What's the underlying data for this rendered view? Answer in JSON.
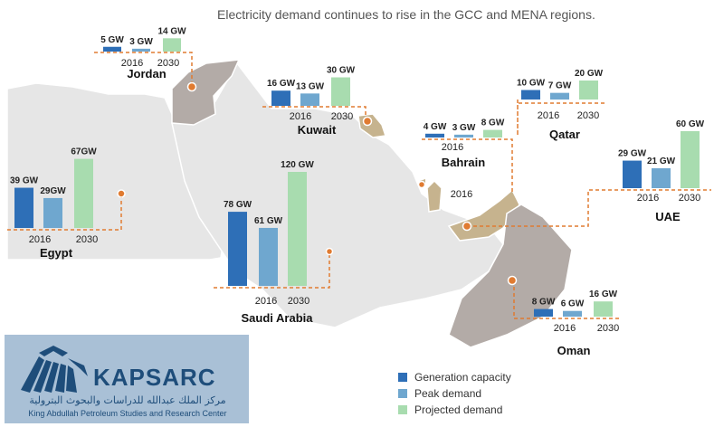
{
  "title": "Electricity demand continues to rise in the GCC and MENA regions.",
  "colors": {
    "generation": "#2e6fb7",
    "peak": "#6fa7cf",
    "projected": "#a8dcaf",
    "connector": "#e07b31",
    "land_light": "#e6e6e6",
    "land_dark": "#b3aba7",
    "land_gold": "#c6b38e"
  },
  "legend": [
    {
      "label": "Generation capacity",
      "color": "#2e6fb7"
    },
    {
      "label": "Peak demand",
      "color": "#6fa7cf"
    },
    {
      "label": "Projected demand",
      "color": "#a8dcaf"
    }
  ],
  "logo": {
    "icon": "kapsarc-logo-icon",
    "brand": "KAPSARC",
    "arabic": "مركز الملك عبدالله للدراسات والبحوث البترولية",
    "english": "King Abdullah Petroleum Studies and Research Center"
  },
  "chart_data": {
    "type": "bar",
    "series_names": [
      "Generation capacity",
      "Peak demand",
      "Projected demand"
    ],
    "countries": [
      {
        "name": "Jordan",
        "labels": [
          "5 GW",
          "3 GW",
          "14 GW"
        ],
        "values": [
          5,
          3,
          14
        ],
        "years": [
          "2016",
          "2030"
        ]
      },
      {
        "name": "Kuwait",
        "labels": [
          "16 GW",
          "13 GW",
          "30 GW"
        ],
        "values": [
          16,
          13,
          30
        ],
        "years": [
          "2016",
          "2030"
        ]
      },
      {
        "name": "Egypt",
        "labels": [
          "39 GW",
          "29GW",
          "67GW"
        ],
        "values": [
          39,
          29,
          67
        ],
        "years": [
          "2016",
          "2030"
        ]
      },
      {
        "name": "Saudi Arabia",
        "labels": [
          "78 GW",
          "61 GW",
          "120 GW"
        ],
        "values": [
          78,
          61,
          120
        ],
        "years": [
          "2016",
          "2030"
        ]
      },
      {
        "name": "Bahrain",
        "labels": [
          "4 GW",
          "3 GW",
          "8 GW"
        ],
        "values": [
          4,
          3,
          8
        ],
        "years": [
          "2016",
          "2016"
        ]
      },
      {
        "name": "Qatar",
        "labels": [
          "10 GW",
          "7 GW",
          "20 GW"
        ],
        "values": [
          10,
          7,
          20
        ],
        "years": [
          "2016",
          "2030"
        ]
      },
      {
        "name": "UAE",
        "labels": [
          "29 GW",
          "21 GW",
          "60 GW"
        ],
        "values": [
          29,
          21,
          60
        ],
        "years": [
          "2016",
          "2030"
        ]
      },
      {
        "name": "Oman",
        "labels": [
          "8 GW",
          "6 GW",
          "16 GW"
        ],
        "values": [
          8,
          6,
          16
        ],
        "years": [
          "2016",
          "2030"
        ]
      }
    ]
  }
}
